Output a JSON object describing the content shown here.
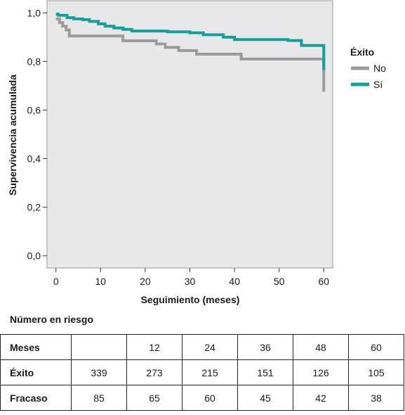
{
  "chart_data": {
    "type": "line",
    "step": true,
    "xlabel": "Seguimiento (meses)",
    "ylabel": "Supervivencia acumulada",
    "xlim": [
      -2,
      62
    ],
    "ylim": [
      -0.05,
      1.05
    ],
    "x_ticks": [
      "0",
      "10",
      "20",
      "30",
      "40",
      "50",
      "60"
    ],
    "x_tick_values": [
      0,
      10,
      20,
      30,
      40,
      50,
      60
    ],
    "y_ticks": [
      "0,0",
      "0,2",
      "0,4",
      "0,6",
      "0,8",
      "1,0"
    ],
    "y_tick_values": [
      0.0,
      0.2,
      0.4,
      0.6,
      0.8,
      1.0
    ],
    "grid": false,
    "legend": {
      "title": "Éxito",
      "position": "right",
      "entries": [
        "No",
        "Sí"
      ]
    },
    "series": [
      {
        "name": "No",
        "color": "#9b9b9b",
        "x": [
          0,
          0.8,
          1.5,
          2.3,
          3.0,
          15.0,
          22.5,
          24.5,
          27.5,
          31.5,
          41.5,
          60,
          60
        ],
        "y": [
          0.975,
          0.96,
          0.945,
          0.93,
          0.905,
          0.885,
          0.872,
          0.858,
          0.845,
          0.83,
          0.81,
          0.81,
          0.675
        ]
      },
      {
        "name": "Sí",
        "color": "#14a09a",
        "x": [
          0,
          0.5,
          2.5,
          4.0,
          6.0,
          7.5,
          9.5,
          11.0,
          13.0,
          15.0,
          17.0,
          25.0,
          30.0,
          33.0,
          37.5,
          40.0,
          52.0,
          55.0,
          60,
          60
        ],
        "y": [
          0.995,
          0.99,
          0.98,
          0.975,
          0.972,
          0.965,
          0.955,
          0.945,
          0.938,
          0.932,
          0.925,
          0.922,
          0.918,
          0.91,
          0.9,
          0.89,
          0.886,
          0.866,
          0.866,
          0.765
        ]
      }
    ]
  },
  "risk_table": {
    "title": "Número en riesgo",
    "header": [
      "Meses",
      "",
      "12",
      "24",
      "36",
      "48",
      "60"
    ],
    "rows": [
      [
        "Éxito",
        "339",
        "273",
        "215",
        "151",
        "126",
        "105"
      ],
      [
        "Fracaso",
        "85",
        "65",
        "60",
        "45",
        "42",
        "38"
      ]
    ]
  }
}
